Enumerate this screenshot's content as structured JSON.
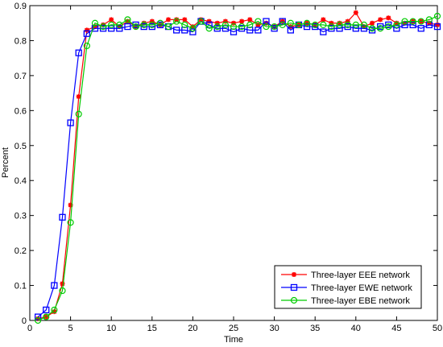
{
  "chart_data": {
    "type": "line",
    "title": "",
    "xlabel": "Time",
    "ylabel": "Percent",
    "xlim": [
      0,
      50
    ],
    "ylim": [
      0,
      0.9
    ],
    "xticks": [
      0,
      5,
      10,
      15,
      20,
      25,
      30,
      35,
      40,
      45,
      50
    ],
    "yticks": [
      0,
      0.1,
      0.2,
      0.3,
      0.4,
      0.5,
      0.6,
      0.7,
      0.8,
      0.9
    ],
    "xtick_labels": [
      "0",
      "5",
      "10",
      "15",
      "20",
      "25",
      "30",
      "35",
      "40",
      "45",
      "50"
    ],
    "ytick_labels": [
      "0",
      "0.1",
      "0.2",
      "0.3",
      "0.4",
      "0.5",
      "0.6",
      "0.7",
      "0.8",
      "0.9"
    ],
    "grid": false,
    "legend": "bottom-right",
    "x": [
      1,
      2,
      3,
      4,
      5,
      6,
      7,
      8,
      9,
      10,
      11,
      12,
      13,
      14,
      15,
      16,
      17,
      18,
      19,
      20,
      21,
      22,
      23,
      24,
      25,
      26,
      27,
      28,
      29,
      30,
      31,
      32,
      33,
      34,
      35,
      36,
      37,
      38,
      39,
      40,
      41,
      42,
      43,
      44,
      45,
      46,
      47,
      48,
      49,
      50
    ],
    "series": [
      {
        "name": "Three-layer EEE network",
        "color": "#ff0000",
        "marker": "star",
        "values": [
          0.005,
          0.01,
          0.025,
          0.105,
          0.33,
          0.64,
          0.83,
          0.84,
          0.845,
          0.86,
          0.84,
          0.855,
          0.84,
          0.85,
          0.855,
          0.845,
          0.86,
          0.86,
          0.86,
          0.84,
          0.86,
          0.855,
          0.85,
          0.855,
          0.85,
          0.855,
          0.86,
          0.845,
          0.85,
          0.84,
          0.855,
          0.84,
          0.845,
          0.85,
          0.845,
          0.86,
          0.85,
          0.85,
          0.855,
          0.88,
          0.84,
          0.85,
          0.86,
          0.865,
          0.85,
          0.85,
          0.855,
          0.855,
          0.85,
          0.845
        ]
      },
      {
        "name": "Three-layer EWE network",
        "color": "#0000ff",
        "marker": "square",
        "values": [
          0.01,
          0.03,
          0.1,
          0.295,
          0.565,
          0.765,
          0.82,
          0.835,
          0.835,
          0.835,
          0.835,
          0.84,
          0.845,
          0.84,
          0.84,
          0.845,
          0.84,
          0.83,
          0.83,
          0.825,
          0.855,
          0.845,
          0.835,
          0.835,
          0.825,
          0.835,
          0.83,
          0.83,
          0.855,
          0.835,
          0.855,
          0.83,
          0.845,
          0.84,
          0.84,
          0.825,
          0.835,
          0.835,
          0.84,
          0.835,
          0.835,
          0.83,
          0.84,
          0.845,
          0.835,
          0.845,
          0.845,
          0.835,
          0.845,
          0.84
        ]
      },
      {
        "name": "Three-layer EBE network",
        "color": "#00cc00",
        "marker": "circle",
        "values": [
          0.0,
          0.01,
          0.03,
          0.085,
          0.28,
          0.59,
          0.785,
          0.85,
          0.84,
          0.845,
          0.845,
          0.86,
          0.84,
          0.845,
          0.845,
          0.85,
          0.84,
          0.855,
          0.845,
          0.835,
          0.855,
          0.835,
          0.84,
          0.845,
          0.84,
          0.84,
          0.845,
          0.855,
          0.84,
          0.84,
          0.845,
          0.85,
          0.845,
          0.85,
          0.845,
          0.845,
          0.84,
          0.845,
          0.845,
          0.845,
          0.845,
          0.835,
          0.835,
          0.84,
          0.845,
          0.855,
          0.855,
          0.855,
          0.86,
          0.87
        ]
      }
    ]
  }
}
